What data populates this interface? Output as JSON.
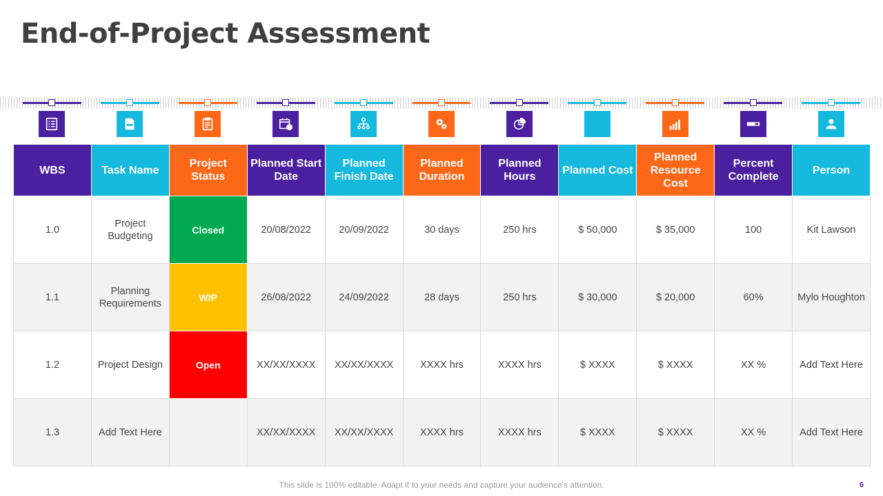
{
  "slide": {
    "title": "End-of-Project Assessment",
    "footer": "This slide is 100% editable. Adapt it to your needs and capture your audience's attention.",
    "page_number": "6"
  },
  "colors": {
    "purple": "#4a1fa0",
    "cyan": "#14b9dd",
    "orange": "#fd6718",
    "closed": "#00a94f",
    "wip": "#ffc000",
    "open": "#ff0000"
  },
  "columns": [
    {
      "label": "WBS",
      "color": "purple",
      "icon": "checklist-icon"
    },
    {
      "label": "Task Name",
      "color": "cyan",
      "icon": "document-icon"
    },
    {
      "label": "Project Status",
      "color": "orange",
      "icon": "clipboard-icon"
    },
    {
      "label": "Planned Start Date",
      "color": "purple",
      "icon": "calendar-icon"
    },
    {
      "label": "Planned Finish Date",
      "color": "cyan",
      "icon": "org-chart-icon"
    },
    {
      "label": "Planned Duration",
      "color": "orange",
      "icon": "gears-icon"
    },
    {
      "label": "Planned Hours",
      "color": "purple",
      "icon": "pie-chart-icon"
    },
    {
      "label": "Planned Cost",
      "color": "cyan",
      "icon": "blank-icon"
    },
    {
      "label": "Planned Resource Cost",
      "color": "orange",
      "icon": "bar-chart-icon"
    },
    {
      "label": "Percent Complete",
      "color": "purple",
      "icon": "progress-bar-icon"
    },
    {
      "label": "Person",
      "color": "cyan",
      "icon": "user-icon"
    }
  ],
  "rows": [
    {
      "wbs": "1.0",
      "task": "Project Budgeting",
      "status": "Closed",
      "status_color": "closed",
      "start": "20/08/2022",
      "finish": "20/09/2022",
      "duration": "30 days",
      "hours": "250 hrs",
      "cost": "$ 50,000",
      "resource_cost": "$ 35,000",
      "percent": "100",
      "person": "Kit Lawson"
    },
    {
      "wbs": "1.1",
      "task": "Planning Requirements",
      "status": "WIP",
      "status_color": "wip",
      "start": "26/08/2022",
      "finish": "24/09/2022",
      "duration": "28 days",
      "hours": "250 hrs",
      "cost": "$ 30,000",
      "resource_cost": "$ 20,000",
      "percent": "60%",
      "person": "Mylo Houghton"
    },
    {
      "wbs": "1.2",
      "task": "Project Design",
      "status": "Open",
      "status_color": "open",
      "start": "XX/XX/XXXX",
      "finish": "XX/XX/XXXX",
      "duration": "XXXX  hrs",
      "hours": "XXXX  hrs",
      "cost": "$ XXXX",
      "resource_cost": "$ XXXX",
      "percent": "XX  %",
      "person": "Add Text Here"
    },
    {
      "wbs": "1.3",
      "task": "Add Text Here",
      "status": "",
      "status_color": "",
      "start": "XX/XX/XXXX",
      "finish": "XX/XX/XXXX",
      "duration": "XXXX  hrs",
      "hours": "XXXX  hrs",
      "cost": "$ XXXX",
      "resource_cost": "$ XXXX",
      "percent": "XX  %",
      "person": "Add Text Here"
    }
  ]
}
